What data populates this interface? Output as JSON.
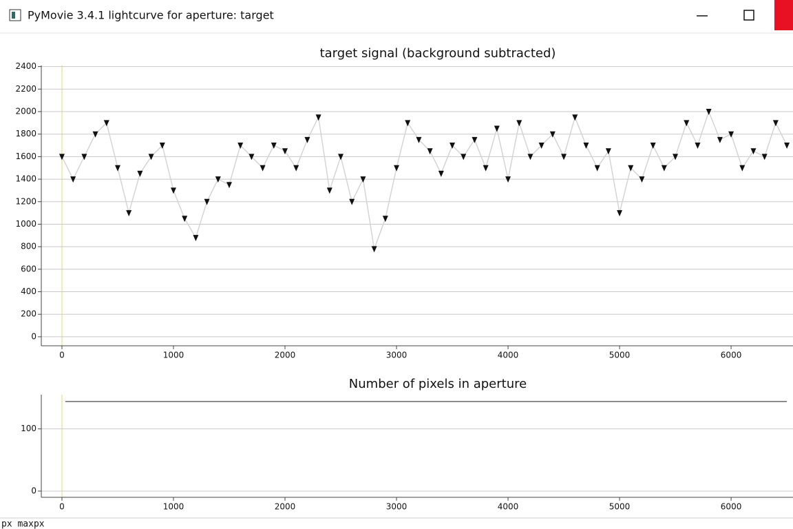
{
  "window": {
    "title": "PyMovie 3.4.1 lightcurve for aperture: target",
    "status": "px maxpx"
  },
  "chart_data": [
    {
      "type": "scatter",
      "title": "target signal (background subtracted)",
      "x": [
        0,
        100,
        200,
        300,
        400,
        500,
        600,
        700,
        800,
        900,
        1000,
        1100,
        1200,
        1300,
        1400,
        1500,
        1600,
        1700,
        1800,
        1900,
        2000,
        2100,
        2200,
        2300,
        2400,
        2500,
        2600,
        2700,
        2800,
        2900,
        3000,
        3100,
        3200,
        3300,
        3400,
        3500,
        3600,
        3700,
        3800,
        3900,
        4000,
        4100,
        4200,
        4300,
        4400,
        4500,
        4600,
        4700,
        4800,
        4900,
        5000,
        5100,
        5200,
        5300,
        5400,
        5500,
        5600,
        5700,
        5800,
        5900,
        6000,
        6100,
        6200,
        6300,
        6400,
        6500
      ],
      "series": [
        {
          "color": "#111111",
          "line_color": "#d4d4d4",
          "values": [
            1600,
            1400,
            1600,
            1800,
            1900,
            1500,
            1100,
            1450,
            1600,
            1700,
            1300,
            1050,
            880,
            1200,
            1400,
            1350,
            1700,
            1600,
            1500,
            1700,
            1650,
            1500,
            1750,
            1950,
            1300,
            1600,
            1200,
            1400,
            780,
            1050,
            1500,
            1900,
            1750,
            1650,
            1450,
            1700,
            1600,
            1750,
            1500,
            1850,
            1400,
            1900,
            1600,
            1700,
            1800,
            1600,
            1950,
            1700,
            1500,
            1650,
            1100,
            1500,
            1400,
            1700,
            1500,
            1600,
            1900,
            1700,
            2000,
            1750,
            1800,
            1500,
            1650,
            1600,
            1900,
            1700
          ]
        }
      ],
      "xlim": [
        -185,
        6555
      ],
      "xticks": [
        0,
        1000,
        2000,
        3000,
        4000,
        5000,
        6000
      ],
      "ylim": [
        -80,
        2410
      ],
      "yticks": [
        0,
        200,
        400,
        600,
        800,
        1000,
        1200,
        1400,
        1600,
        1800,
        2000,
        2200,
        2400
      ],
      "grid": true
    },
    {
      "type": "line",
      "title": "Number of pixels in aperture",
      "x": [
        30,
        6500
      ],
      "series": [
        {
          "color": "#333333",
          "values": [
            144,
            144
          ]
        }
      ],
      "xlim": [
        -185,
        6555
      ],
      "xticks": [
        0,
        1000,
        2000,
        3000,
        4000,
        5000,
        6000
      ],
      "ylim": [
        -10,
        155
      ],
      "yticks": [
        0,
        100
      ],
      "grid": true
    }
  ]
}
